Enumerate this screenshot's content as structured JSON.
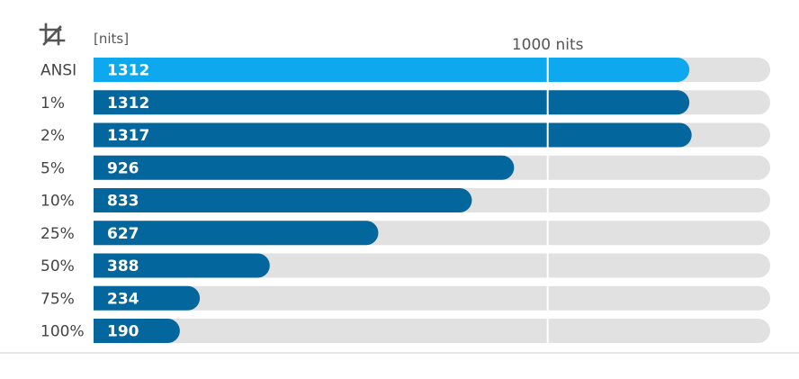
{
  "chart_data": {
    "type": "bar",
    "orientation": "horizontal",
    "unit_label": "[nits]",
    "reference_line": {
      "value": 1000,
      "label": "1000 nits"
    },
    "categories": [
      "ANSI",
      "1%",
      "2%",
      "5%",
      "10%",
      "25%",
      "50%",
      "75%",
      "100%"
    ],
    "values": [
      1312,
      1312,
      1317,
      926,
      833,
      627,
      388,
      234,
      190
    ],
    "value_labels": [
      "1312",
      "1312",
      "1317",
      "926",
      "833",
      "627",
      "388",
      "234",
      "190"
    ],
    "xlim": [
      0,
      1490
    ],
    "icon": "crop-icon",
    "colors": {
      "highlight_bar": "#0ea8ee",
      "bar": "#03679e",
      "track": "#e1e1e1",
      "label_text": "#444444",
      "value_text": "#ffffff",
      "reference_line": "#ffffff",
      "baseline": "#dddddd"
    }
  }
}
